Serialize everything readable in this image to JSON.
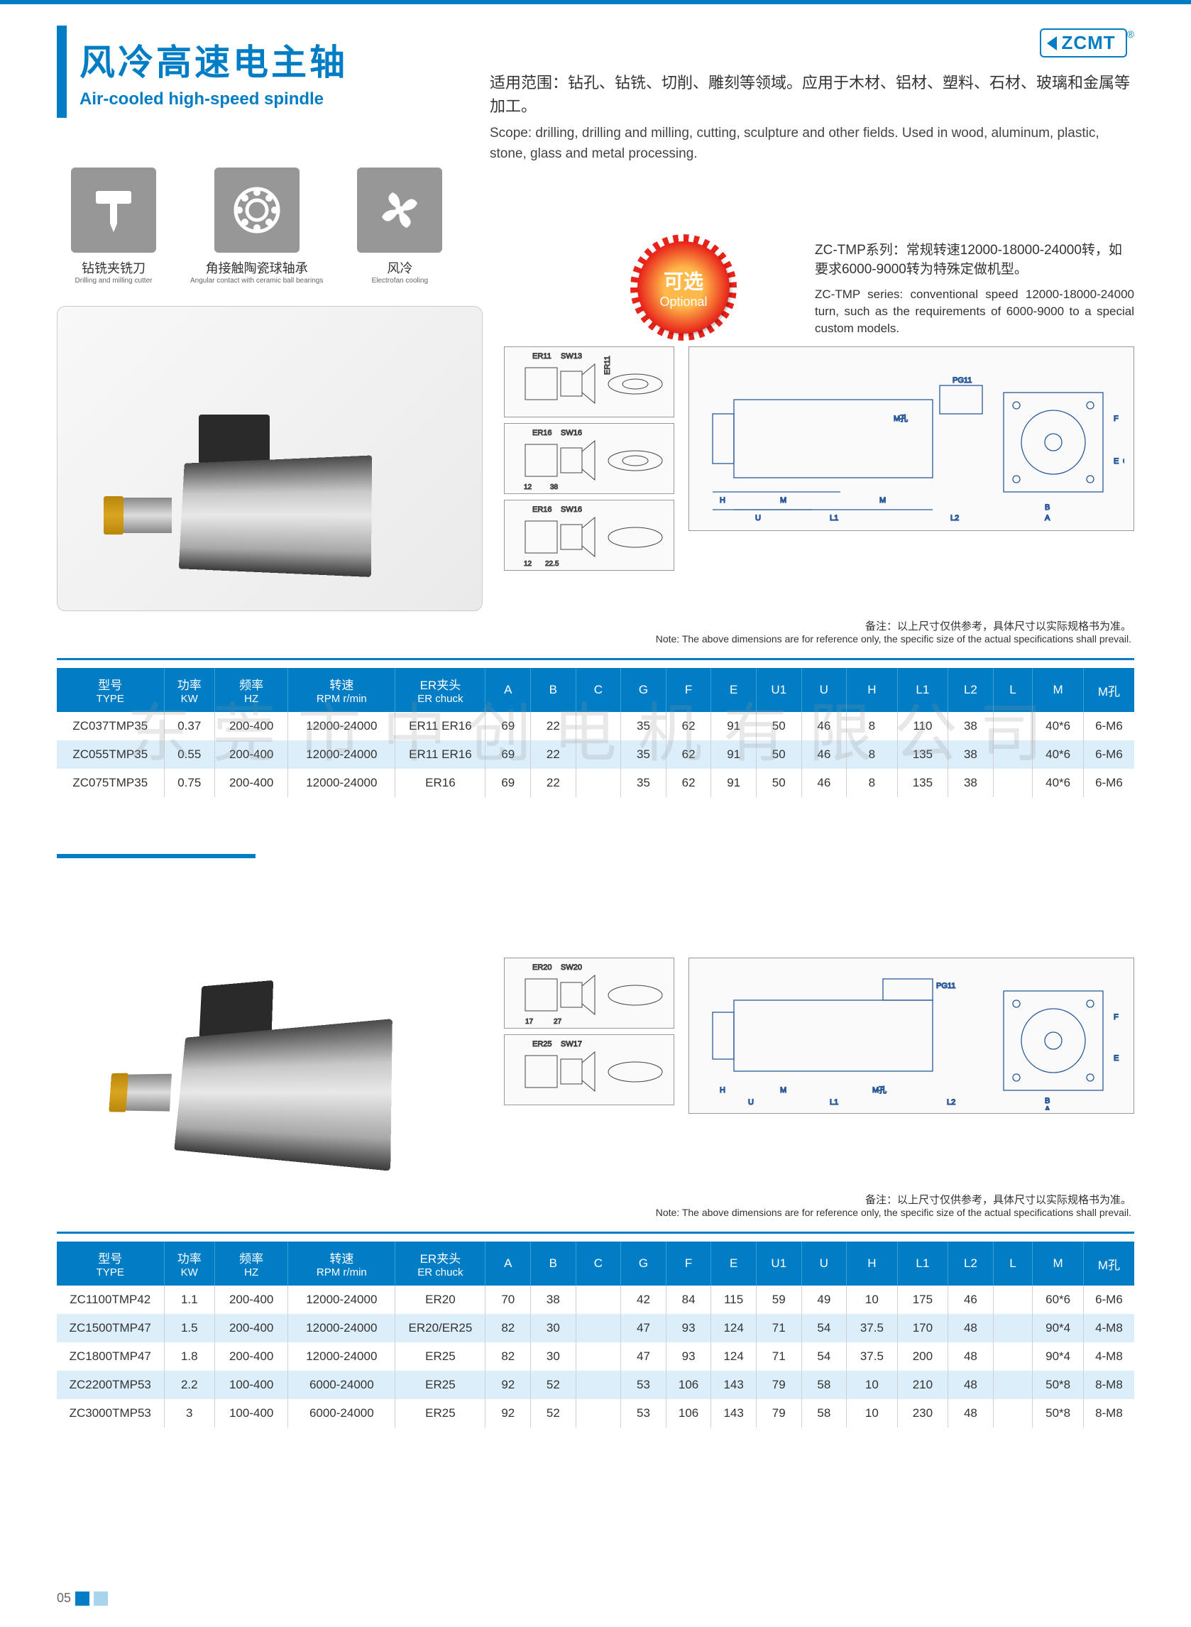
{
  "brand": "ZCMT",
  "title_cn": "风冷高速电主轴",
  "title_en": "Air-cooled high-speed spindle",
  "scope_cn": "适用范围：钻孔、钻铣、切削、雕刻等领域。应用于木材、铝材、塑料、石材、玻璃和金属等加工。",
  "scope_en": "Scope: drilling, drilling and milling, cutting, sculpture and other fields. Used in wood, aluminum, plastic, stone, glass and metal processing.",
  "icons": [
    {
      "cn": "钻铣夹铣刀",
      "en": "Drilling and milling cutter"
    },
    {
      "cn": "角接触陶瓷球轴承",
      "en": "Angular contact with ceramic ball bearings"
    },
    {
      "cn": "风冷",
      "en": "Electrofan cooling"
    }
  ],
  "optional_cn": "可选",
  "optional_en": "Optional",
  "series_cn": "ZC-TMP系列：常规转速12000-18000-24000转，如要求6000-9000转为特殊定做机型。",
  "series_en": "ZC-TMP series: conventional speed 12000-18000-24000 turn, such as the requirements of 6000-9000 to a special custom models.",
  "note_cn": "备注：以上尺寸仅供参考，具体尺寸以实际规格书为准。",
  "note_en": "Note: The above dimensions are for reference only, the specific size of the actual specifications shall prevail.",
  "watermark": "东莞市中创电机有限公司",
  "page_num": "05",
  "columns": [
    {
      "cn": "型号",
      "en": "TYPE"
    },
    {
      "cn": "功率",
      "en": "KW"
    },
    {
      "cn": "频率",
      "en": "HZ"
    },
    {
      "cn": "转速",
      "en": "RPM r/min"
    },
    {
      "cn": "ER夹头",
      "en": "ER chuck"
    },
    {
      "cn": "A",
      "en": ""
    },
    {
      "cn": "B",
      "en": ""
    },
    {
      "cn": "C",
      "en": ""
    },
    {
      "cn": "G",
      "en": ""
    },
    {
      "cn": "F",
      "en": ""
    },
    {
      "cn": "E",
      "en": ""
    },
    {
      "cn": "U1",
      "en": ""
    },
    {
      "cn": "U",
      "en": ""
    },
    {
      "cn": "H",
      "en": ""
    },
    {
      "cn": "L1",
      "en": ""
    },
    {
      "cn": "L2",
      "en": ""
    },
    {
      "cn": "L",
      "en": ""
    },
    {
      "cn": "M",
      "en": ""
    },
    {
      "cn": "M孔",
      "en": ""
    }
  ],
  "table1_rows": [
    [
      "ZC037TMP35",
      "0.37",
      "200-400",
      "12000-24000",
      "ER11 ER16",
      "69",
      "22",
      "",
      "35",
      "62",
      "91",
      "50",
      "46",
      "8",
      "110",
      "38",
      "",
      "40*6",
      "6-M6"
    ],
    [
      "ZC055TMP35",
      "0.55",
      "200-400",
      "12000-24000",
      "ER11 ER16",
      "69",
      "22",
      "",
      "35",
      "62",
      "91",
      "50",
      "46",
      "8",
      "135",
      "38",
      "",
      "40*6",
      "6-M6"
    ],
    [
      "ZC075TMP35",
      "0.75",
      "200-400",
      "12000-24000",
      "ER16",
      "69",
      "22",
      "",
      "35",
      "62",
      "91",
      "50",
      "46",
      "8",
      "135",
      "38",
      "",
      "40*6",
      "6-M6"
    ]
  ],
  "table2_rows": [
    [
      "ZC1100TMP42",
      "1.1",
      "200-400",
      "12000-24000",
      "ER20",
      "70",
      "38",
      "",
      "42",
      "84",
      "115",
      "59",
      "49",
      "10",
      "175",
      "46",
      "",
      "60*6",
      "6-M6"
    ],
    [
      "ZC1500TMP47",
      "1.5",
      "200-400",
      "12000-24000",
      "ER20/ER25",
      "82",
      "30",
      "",
      "47",
      "93",
      "124",
      "71",
      "54",
      "37.5",
      "170",
      "48",
      "",
      "90*4",
      "4-M8"
    ],
    [
      "ZC1800TMP47",
      "1.8",
      "200-400",
      "12000-24000",
      "ER25",
      "82",
      "30",
      "",
      "47",
      "93",
      "124",
      "71",
      "54",
      "37.5",
      "200",
      "48",
      "",
      "90*4",
      "4-M8"
    ],
    [
      "ZC2200TMP53",
      "2.2",
      "100-400",
      "6000-24000",
      "ER25",
      "92",
      "52",
      "",
      "53",
      "106",
      "143",
      "79",
      "58",
      "10",
      "210",
      "48",
      "",
      "50*8",
      "8-M8"
    ],
    [
      "ZC3000TMP53",
      "3",
      "100-400",
      "6000-24000",
      "ER25",
      "92",
      "52",
      "",
      "53",
      "106",
      "143",
      "79",
      "58",
      "10",
      "230",
      "48",
      "",
      "50*8",
      "8-M8"
    ]
  ],
  "diag_labels": {
    "er11": "ER11",
    "er16": "ER16",
    "er20": "ER20",
    "er25": "ER25",
    "sw13": "SW13",
    "sw16": "SW16",
    "sw17": "SW17",
    "sw20": "SW20",
    "pg11": "PG11",
    "m2f": "M孔"
  },
  "col_widths": [
    "9.5%",
    "4.5%",
    "6.5%",
    "9.5%",
    "8%",
    "4%",
    "4%",
    "4%",
    "4%",
    "4%",
    "4%",
    "4%",
    "4%",
    "4.5%",
    "4.5%",
    "4%",
    "3.5%",
    "4.5%",
    "4.5%"
  ]
}
